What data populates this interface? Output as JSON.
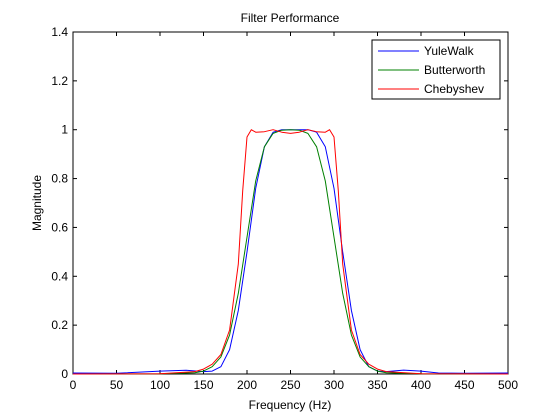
{
  "chart_data": {
    "type": "line",
    "title": "Filter Performance",
    "xlabel": "Frequency (Hz)",
    "ylabel": "Magnitude",
    "xlim": [
      0,
      500
    ],
    "ylim": [
      0,
      1.4
    ],
    "xticks": [
      0,
      50,
      100,
      150,
      200,
      250,
      300,
      350,
      400,
      450,
      500
    ],
    "yticks": [
      0,
      0.2,
      0.4,
      0.6,
      0.8,
      1,
      1.2,
      1.4
    ],
    "xtick_labels": [
      "0",
      "50",
      "100",
      "150",
      "200",
      "250",
      "300",
      "350",
      "400",
      "450",
      "500"
    ],
    "ytick_labels": [
      "0",
      "0.2",
      "0.4",
      "0.6",
      "0.8",
      "1",
      "1.2",
      "1.4"
    ],
    "grid": false,
    "legend_position": "top-right",
    "series": [
      {
        "name": "YuleWalk",
        "color": "#0000ff",
        "x": [
          0,
          50,
          100,
          130,
          150,
          160,
          170,
          180,
          190,
          200,
          210,
          220,
          230,
          240,
          250,
          260,
          270,
          280,
          290,
          300,
          310,
          320,
          330,
          340,
          350,
          360,
          380,
          400,
          420,
          450,
          500
        ],
        "y": [
          0.004,
          0.003,
          0.012,
          0.015,
          0.01,
          0.012,
          0.03,
          0.1,
          0.26,
          0.5,
          0.76,
          0.93,
          0.99,
          1.0,
          1.0,
          1.0,
          1.0,
          0.99,
          0.93,
          0.76,
          0.5,
          0.26,
          0.1,
          0.03,
          0.012,
          0.01,
          0.016,
          0.012,
          0.004,
          0.003,
          0.004
        ]
      },
      {
        "name": "Butterworth",
        "color": "#008000",
        "x": [
          0,
          100,
          140,
          150,
          160,
          170,
          180,
          190,
          200,
          210,
          220,
          230,
          240,
          250,
          260,
          270,
          280,
          290,
          300,
          310,
          320,
          330,
          340,
          350,
          360,
          400,
          500
        ],
        "y": [
          0,
          0.001,
          0.005,
          0.012,
          0.03,
          0.07,
          0.16,
          0.33,
          0.56,
          0.79,
          0.93,
          0.985,
          0.998,
          1.0,
          0.998,
          0.985,
          0.93,
          0.79,
          0.56,
          0.33,
          0.16,
          0.07,
          0.03,
          0.012,
          0.005,
          0.001,
          0
        ]
      },
      {
        "name": "Chebyshev",
        "color": "#ff0000",
        "x": [
          0,
          100,
          140,
          150,
          160,
          170,
          180,
          190,
          195,
          200,
          205,
          210,
          220,
          230,
          240,
          250,
          260,
          270,
          280,
          290,
          295,
          300,
          305,
          310,
          320,
          330,
          340,
          350,
          360,
          400,
          500
        ],
        "y": [
          0,
          0.001,
          0.01,
          0.02,
          0.04,
          0.08,
          0.18,
          0.45,
          0.75,
          0.97,
          1.0,
          0.99,
          0.992,
          1.0,
          0.99,
          0.985,
          0.99,
          1.0,
          0.992,
          0.99,
          1.0,
          0.97,
          0.75,
          0.45,
          0.18,
          0.08,
          0.04,
          0.02,
          0.01,
          0.001,
          0
        ]
      }
    ]
  }
}
